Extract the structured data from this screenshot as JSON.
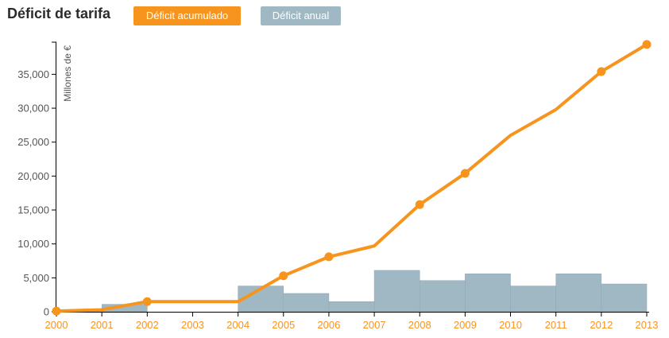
{
  "header": {
    "title": "Déficit de tarifa",
    "legend": [
      {
        "label": "Déficit acumulado",
        "color": "#f7941d"
      },
      {
        "label": "Déficit anual",
        "color": "#a0b8c4"
      }
    ]
  },
  "chart_data": {
    "type": "line",
    "title": "Déficit de tarifa",
    "ylabel": "Millones de €",
    "xlabel": "",
    "xlim": [
      2000,
      2013
    ],
    "ylim": [
      0,
      39500
    ],
    "y_ticks": [
      0,
      5000,
      10000,
      15000,
      20000,
      25000,
      30000,
      35000
    ],
    "y_tick_labels": [
      "0",
      "5,000",
      "10,000",
      "15,000",
      "20,000",
      "25,000",
      "30,000",
      "35,000"
    ],
    "x_ticks": [
      2000,
      2001,
      2002,
      2003,
      2004,
      2005,
      2006,
      2007,
      2008,
      2009,
      2010,
      2011,
      2012,
      2013
    ],
    "x_tick_labels": [
      "2000",
      "2001",
      "2002",
      "2003",
      "2004",
      "2005",
      "2006",
      "2007",
      "2008",
      "2009",
      "2010",
      "2011",
      "2012",
      "2013"
    ],
    "grid": false,
    "series": [
      {
        "name": "Déficit acumulado",
        "type": "line",
        "color": "#f7941d",
        "x": [
          2000,
          2001,
          2002,
          2003,
          2004,
          2005,
          2006,
          2007,
          2008,
          2009,
          2010,
          2011,
          2012,
          2013
        ],
        "values": [
          100,
          300,
          1500,
          1500,
          1500,
          5300,
          8100,
          9700,
          15800,
          20400,
          26000,
          29800,
          35400,
          39400
        ],
        "markers_at": [
          2000,
          2002,
          2005,
          2006,
          2008,
          2009,
          2012,
          2013
        ]
      },
      {
        "name": "Déficit anual",
        "type": "bar",
        "color": "#a0b8c4",
        "x_start": [
          2000,
          2001,
          2002,
          2003,
          2004,
          2005,
          2006,
          2007,
          2008,
          2009,
          2010,
          2011,
          2012
        ],
        "values": [
          100,
          1100,
          0,
          0,
          3800,
          2700,
          1500,
          6100,
          4600,
          5600,
          3800,
          5600,
          4100
        ]
      }
    ]
  }
}
